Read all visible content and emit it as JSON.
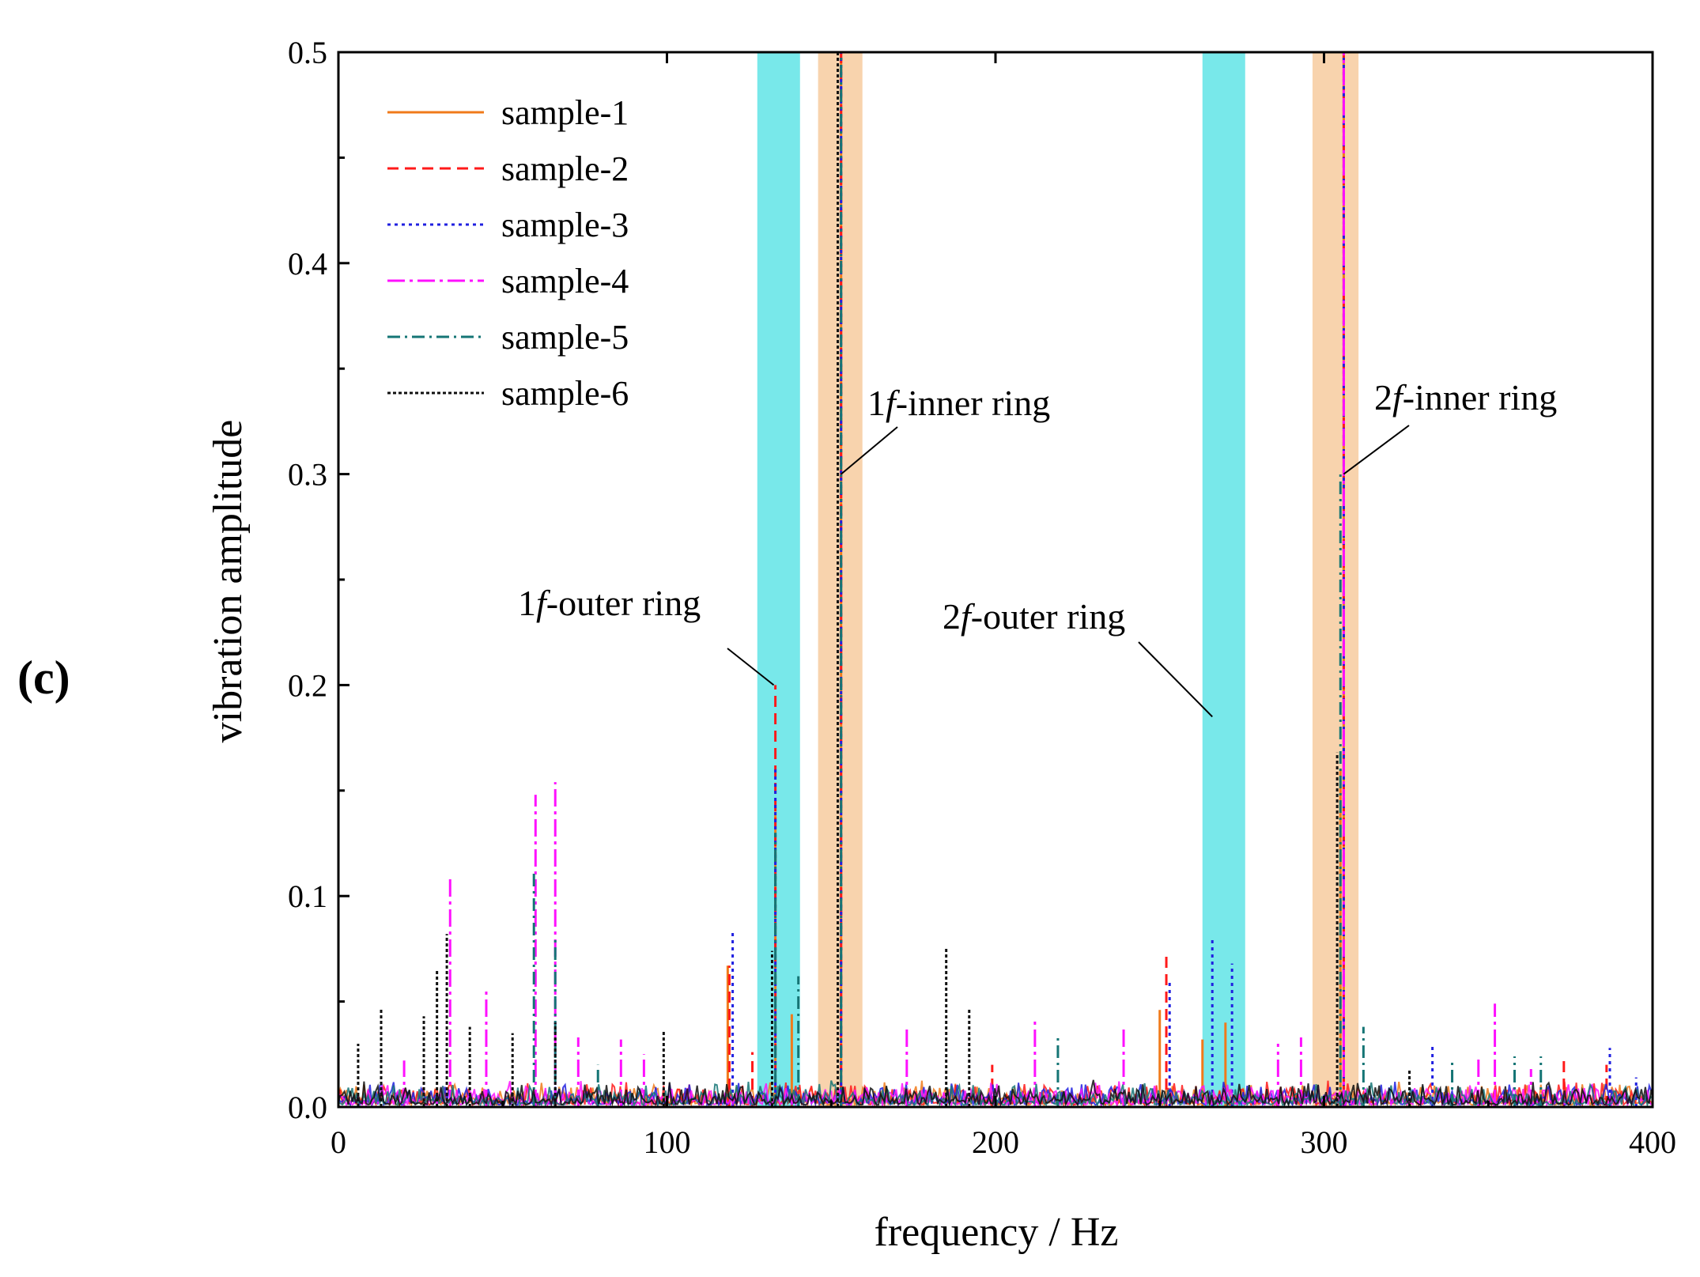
{
  "panel_label": "(c)",
  "chart_data": {
    "type": "line",
    "title": "",
    "xlabel": "frequency / Hz",
    "ylabel": "vibration amplitude",
    "xlim": [
      0,
      400
    ],
    "ylim": [
      0,
      0.5
    ],
    "x_ticks": [
      0,
      100,
      200,
      300,
      400
    ],
    "y_ticks": [
      0.0,
      0.1,
      0.2,
      0.3,
      0.4,
      0.5
    ],
    "x_tick_labels": [
      "0",
      "100",
      "200",
      "300",
      "400"
    ],
    "y_tick_labels": [
      "0.0",
      "0.1",
      "0.2",
      "0.3",
      "0.4",
      "0.5"
    ],
    "legend_position": "top-left",
    "bands": [
      {
        "name": "1f-outer-band",
        "x0": 127.5,
        "x1": 140.5,
        "color": "#78e8ea"
      },
      {
        "name": "1f-inner-band",
        "x0": 146,
        "x1": 159.5,
        "color": "#f8d3ad"
      },
      {
        "name": "2f-outer-band",
        "x0": 263,
        "x1": 276,
        "color": "#78e8ea"
      },
      {
        "name": "2f-inner-band",
        "x0": 296.5,
        "x1": 310.5,
        "color": "#f8d3ad"
      }
    ],
    "annotations": [
      {
        "text_prefix": "1",
        "text_italic": "f",
        "text_suffix": "-outer ring",
        "x": 132.5,
        "y": 0.2
      },
      {
        "text_prefix": "1",
        "text_italic": "f",
        "text_suffix": "-inner ring",
        "x": 153,
        "y": 0.3
      },
      {
        "text_prefix": "2",
        "text_italic": "f",
        "text_suffix": "-outer ring",
        "x": 266,
        "y": 0.185
      },
      {
        "text_prefix": "2",
        "text_italic": "f",
        "text_suffix": "-inner ring",
        "x": 306,
        "y": 0.3
      }
    ],
    "series": [
      {
        "name": "sample-1",
        "color": "#f07a1a",
        "dash": "",
        "peaks": [
          [
            118.5,
            0.067
          ],
          [
            133,
            0.14
          ],
          [
            138,
            0.044
          ],
          [
            153,
            0.5
          ],
          [
            250,
            0.046
          ],
          [
            263,
            0.032
          ],
          [
            270,
            0.04
          ],
          [
            306,
            0.5
          ],
          [
            382,
            0.01
          ],
          [
            305,
            0.16
          ]
        ]
      },
      {
        "name": "sample-2",
        "color": "#ff1a1a",
        "dash": "14,8",
        "peaks": [
          [
            119,
            0.067
          ],
          [
            126,
            0.026
          ],
          [
            133,
            0.2
          ],
          [
            153,
            0.5
          ],
          [
            199,
            0.02
          ],
          [
            252,
            0.072
          ],
          [
            306,
            0.5
          ],
          [
            373,
            0.024
          ],
          [
            386,
            0.02
          ]
        ]
      },
      {
        "name": "sample-3",
        "color": "#2020e0",
        "dash": "4,5",
        "peaks": [
          [
            120,
            0.084
          ],
          [
            133,
            0.16
          ],
          [
            153,
            0.5
          ],
          [
            253,
            0.06
          ],
          [
            266,
            0.08
          ],
          [
            272,
            0.068
          ],
          [
            306,
            0.5
          ],
          [
            333,
            0.03
          ],
          [
            387,
            0.028
          ],
          [
            395,
            0.014
          ]
        ]
      },
      {
        "name": "sample-4",
        "color": "#ff10ff",
        "dash": "22,6,4,6",
        "peaks": [
          [
            20,
            0.022
          ],
          [
            34,
            0.11
          ],
          [
            45,
            0.056
          ],
          [
            60,
            0.148
          ],
          [
            66,
            0.154
          ],
          [
            73,
            0.033
          ],
          [
            86,
            0.032
          ],
          [
            93,
            0.025
          ],
          [
            173,
            0.037
          ],
          [
            212,
            0.042
          ],
          [
            239,
            0.037
          ],
          [
            286,
            0.03
          ],
          [
            293,
            0.033
          ],
          [
            306,
            0.5
          ],
          [
            347,
            0.024
          ],
          [
            352,
            0.049
          ],
          [
            363,
            0.018
          ]
        ]
      },
      {
        "name": "sample-5",
        "color": "#157575",
        "dash": "16,6,3,6",
        "peaks": [
          [
            59.5,
            0.112
          ],
          [
            66,
            0.08
          ],
          [
            79,
            0.02
          ],
          [
            133,
            0.13
          ],
          [
            140,
            0.062
          ],
          [
            153,
            0.5
          ],
          [
            219,
            0.033
          ],
          [
            305,
            0.3
          ],
          [
            312,
            0.038
          ],
          [
            339,
            0.022
          ],
          [
            358,
            0.024
          ],
          [
            366,
            0.024
          ]
        ]
      },
      {
        "name": "sample-6",
        "color": "#101010",
        "dash": "4,3",
        "peaks": [
          [
            6,
            0.03
          ],
          [
            13,
            0.047
          ],
          [
            26,
            0.043
          ],
          [
            30,
            0.065
          ],
          [
            33,
            0.082
          ],
          [
            40,
            0.038
          ],
          [
            53,
            0.035
          ],
          [
            66,
            0.04
          ],
          [
            99,
            0.036
          ],
          [
            132,
            0.074
          ],
          [
            152,
            0.5
          ],
          [
            185,
            0.075
          ],
          [
            192,
            0.047
          ],
          [
            304,
            0.168
          ],
          [
            326,
            0.018
          ]
        ]
      }
    ]
  }
}
